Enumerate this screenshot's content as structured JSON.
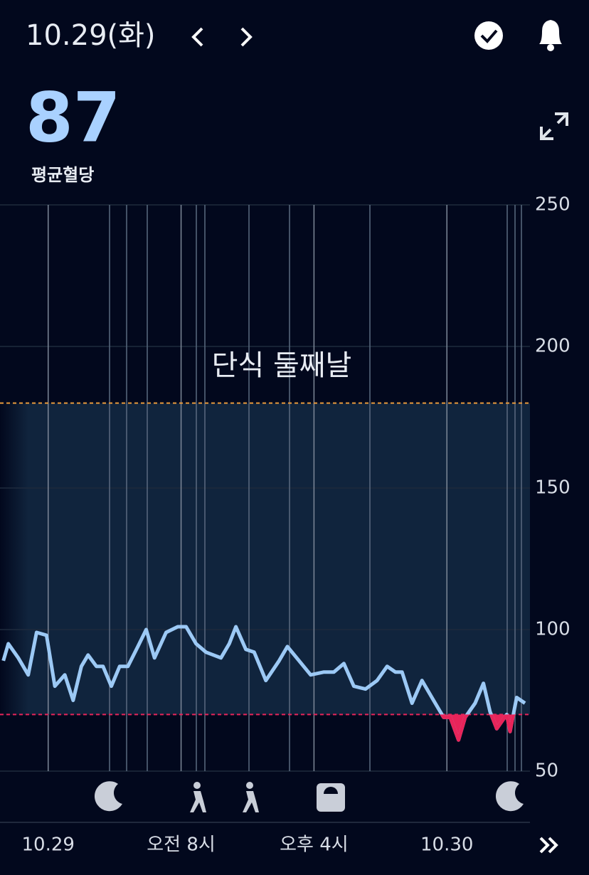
{
  "header": {
    "date": "10.29(화)"
  },
  "summary": {
    "value": 87,
    "label": "평균혈당"
  },
  "chart_data": {
    "type": "line",
    "annotation": "단식 둘째날",
    "x": [
      -2.7,
      -2.4,
      -1.8,
      -1.2,
      -0.7,
      -0.1,
      0.4,
      1.0,
      1.5,
      2.0,
      2.4,
      2.9,
      3.3,
      3.8,
      4.3,
      4.8,
      5.4,
      5.9,
      6.4,
      7.1,
      7.8,
      8.3,
      8.9,
      9.5,
      10.4,
      10.9,
      11.3,
      11.9,
      12.4,
      13.1,
      13.9,
      14.4,
      15.1,
      15.8,
      16.6,
      17.2,
      17.8,
      18.4,
      19.1,
      19.8,
      20.4,
      20.9,
      21.3,
      21.9,
      22.5,
      23.2,
      23.8,
      24.2,
      24.7,
      25.1,
      25.7,
      26.2,
      26.6,
      27.0,
      27.6,
      27.8,
      28.2,
      28.7
    ],
    "values": [
      89,
      95,
      90,
      84,
      99,
      98,
      80,
      84,
      75,
      87,
      91,
      87,
      87,
      80,
      87,
      87,
      94,
      100,
      90,
      99,
      101,
      101,
      95,
      92,
      90,
      95,
      101,
      93,
      92,
      82,
      89,
      94,
      89,
      84,
      85,
      85,
      88,
      80,
      79,
      82,
      87,
      85,
      85,
      74,
      82,
      75,
      69,
      69,
      61,
      69,
      74,
      81,
      71,
      65,
      70,
      64,
      76,
      74
    ],
    "color": "#9cc9f5",
    "low_color": "#e8245a",
    "high_color": "#e89a3c",
    "range_color": "#10243d",
    "target_range": [
      70,
      180
    ],
    "xlim": [
      -2.9,
      29.0
    ],
    "xticks": [
      {
        "value": 0,
        "label": "10.29"
      },
      {
        "value": 8,
        "label": "오전 8시"
      },
      {
        "value": 16,
        "label": "오후 4시"
      },
      {
        "value": 24,
        "label": "10.30"
      }
    ],
    "ylim": [
      50,
      250
    ],
    "yticks": [
      50,
      100,
      150,
      200,
      250
    ],
    "grid": true
  }
}
